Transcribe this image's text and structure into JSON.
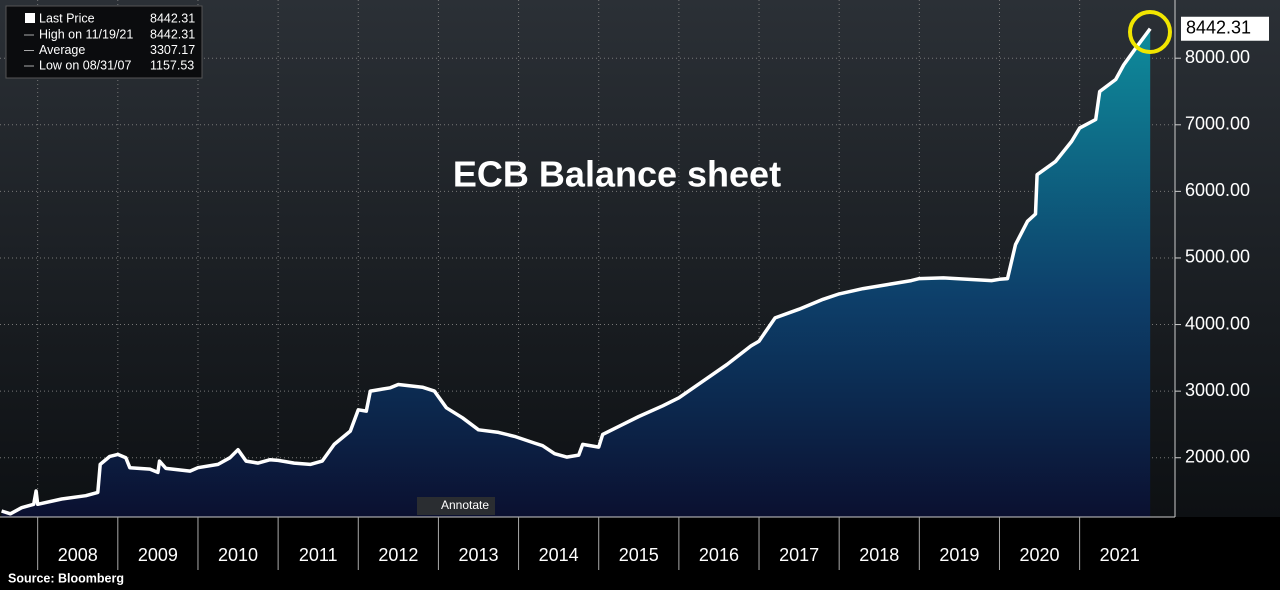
{
  "chart_data": {
    "type": "area",
    "title": "ECB Balance sheet",
    "source": "Source: Bloomberg",
    "button": "Annotate",
    "legend": [
      {
        "label": "High on 11/19/21",
        "value": 8442.31
      },
      {
        "label": "Average",
        "value": 3307.17
      },
      {
        "label": "Low on 08/31/07",
        "value": 1157.53
      }
    ],
    "x": [
      2007.55,
      2007.66,
      2007.8,
      2007.95,
      2007.98,
      2008.0,
      2008.3,
      2008.6,
      2008.75,
      2008.78,
      2008.9,
      2009.0,
      2009.1,
      2009.15,
      2009.4,
      2009.5,
      2009.52,
      2009.6,
      2009.9,
      2010.0,
      2010.25,
      2010.4,
      2010.5,
      2010.6,
      2010.75,
      2010.9,
      2011.0,
      2011.2,
      2011.4,
      2011.55,
      2011.7,
      2011.9,
      2012.0,
      2012.1,
      2012.15,
      2012.4,
      2012.5,
      2012.8,
      2012.95,
      2013.1,
      2013.3,
      2013.5,
      2013.75,
      2013.95,
      2014.2,
      2014.3,
      2014.45,
      2014.6,
      2014.75,
      2014.8,
      2015.0,
      2015.05,
      2015.3,
      2015.5,
      2015.8,
      2016.0,
      2016.3,
      2016.6,
      2016.9,
      2017.0,
      2017.2,
      2017.5,
      2017.8,
      2018.0,
      2018.3,
      2018.6,
      2018.9,
      2019.0,
      2019.3,
      2019.6,
      2019.9,
      2020.0,
      2020.1,
      2020.2,
      2020.35,
      2020.45,
      2020.47,
      2020.7,
      2020.9,
      2021.0,
      2021.2,
      2021.25,
      2021.45,
      2021.55,
      2021.7,
      2021.88
    ],
    "series": [
      {
        "name": "Last Price",
        "color": "#ffffff",
        "values": [
          1200,
          1157.53,
          1250,
          1300,
          1500,
          1300,
          1380,
          1430,
          1480,
          1900,
          2020,
          2050,
          2000,
          1850,
          1830,
          1780,
          1950,
          1840,
          1800,
          1850,
          1900,
          2000,
          2120,
          1950,
          1920,
          1970,
          1960,
          1920,
          1900,
          1950,
          2200,
          2400,
          2720,
          2700,
          3000,
          3050,
          3100,
          3060,
          3000,
          2750,
          2600,
          2420,
          2380,
          2320,
          2220,
          2180,
          2060,
          2010,
          2040,
          2200,
          2160,
          2350,
          2500,
          2620,
          2780,
          2900,
          3150,
          3400,
          3680,
          3750,
          4100,
          4230,
          4380,
          4460,
          4540,
          4600,
          4660,
          4690,
          4700,
          4680,
          4660,
          4680,
          4690,
          5200,
          5550,
          5660,
          6250,
          6450,
          6750,
          6950,
          7080,
          7500,
          7680,
          7900,
          8150,
          8442.31
        ],
        "value_labels_last": "8442.31"
      }
    ],
    "xlim": [
      2007.53,
      2022.19
    ],
    "ylim": [
      1110,
      8874
    ],
    "xticks": [
      2008,
      2009,
      2010,
      2011,
      2012,
      2013,
      2014,
      2015,
      2016,
      2017,
      2018,
      2019,
      2020,
      2021
    ],
    "yticks": [
      {
        "value": 2000,
        "label": "2000.00"
      },
      {
        "value": 3000,
        "label": "3000.00"
      },
      {
        "value": 4000,
        "label": "4000.00"
      },
      {
        "value": 5000,
        "label": "5000.00"
      },
      {
        "value": 6000,
        "label": "6000.00"
      },
      {
        "value": 7000,
        "label": "7000.00"
      },
      {
        "value": 8000,
        "label": "8000.00"
      }
    ],
    "grid": true
  }
}
